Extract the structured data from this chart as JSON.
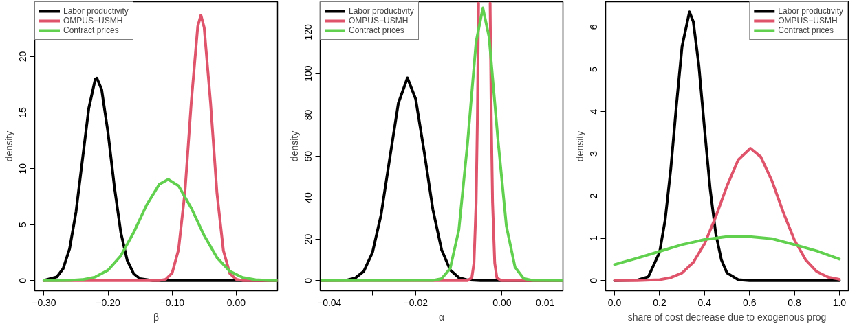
{
  "chart_data": [
    {
      "type": "line",
      "xlabel": "β",
      "ylabel": "density",
      "xlim": [
        -0.3144,
        0.0645
      ],
      "ylim": [
        -0.9,
        24.9
      ],
      "xticks": [
        {
          "value": -0.3,
          "label": "−0.30"
        },
        {
          "value": -0.25,
          "label": null
        },
        {
          "value": -0.2,
          "label": "−0.20"
        },
        {
          "value": -0.15,
          "label": null
        },
        {
          "value": -0.1,
          "label": "−0.10"
        },
        {
          "value": -0.05,
          "label": null
        },
        {
          "value": 0.0,
          "label": "0.00"
        },
        {
          "value": 0.05,
          "label": null
        }
      ],
      "yticks": [
        0,
        5,
        10,
        15,
        20
      ],
      "legend": "top left",
      "grid": false,
      "series": [
        {
          "name": "Labor productivity",
          "color": "#000000",
          "x": [
            -0.3,
            -0.28,
            -0.27,
            -0.26,
            -0.25,
            -0.24,
            -0.23,
            -0.22,
            -0.2175,
            -0.21,
            -0.2,
            -0.19,
            -0.18,
            -0.17,
            -0.16,
            -0.15,
            -0.13,
            0.0645
          ],
          "values": [
            0.02,
            0.33,
            1.08,
            2.85,
            6.13,
            10.77,
            15.4,
            17.97,
            18.08,
            17.07,
            13.2,
            8.34,
            4.28,
            1.8,
            0.62,
            0.17,
            0,
            0
          ]
        },
        {
          "name": "OMPUS−USMH",
          "color": "#df536b",
          "x": [
            -0.3,
            -0.12,
            -0.11,
            -0.1,
            -0.09,
            -0.08,
            -0.07,
            -0.06,
            -0.0551,
            -0.05,
            -0.04,
            -0.03,
            -0.02,
            -0.01,
            0.0,
            0.01,
            0.0645
          ],
          "values": [
            0,
            0.01,
            0.12,
            0.67,
            2.76,
            7.93,
            16.0,
            22.7,
            23.7,
            22.6,
            15.85,
            7.8,
            2.69,
            0.65,
            0.11,
            0.01,
            0
          ]
        },
        {
          "name": "Contract prices",
          "color": "#61d04f",
          "x": [
            -0.3,
            -0.28,
            -0.26,
            -0.24,
            -0.22,
            -0.2,
            -0.18,
            -0.16,
            -0.14,
            -0.12,
            -0.1061,
            -0.09,
            -0.07,
            -0.05,
            -0.03,
            -0.01,
            0.01,
            0.03,
            0.05,
            0.0645
          ],
          "values": [
            0,
            0,
            0.02,
            0.09,
            0.32,
            0.94,
            2.22,
            4.29,
            6.73,
            8.6,
            9.04,
            8.46,
            6.47,
            4.03,
            2.05,
            0.84,
            0.28,
            0.08,
            0.02,
            0
          ]
        }
      ]
    },
    {
      "type": "line",
      "xlabel": "α",
      "ylabel": "density",
      "xlim": [
        -0.0421,
        0.0141
      ],
      "ylim": [
        -4.9,
        134.7
      ],
      "xticks": [
        {
          "value": -0.04,
          "label": "−0.04"
        },
        {
          "value": -0.03,
          "label": null
        },
        {
          "value": -0.02,
          "label": "−0.02"
        },
        {
          "value": -0.01,
          "label": null
        },
        {
          "value": 0.0,
          "label": "0.00"
        },
        {
          "value": 0.01,
          "label": "0.01"
        }
      ],
      "yticks": [
        0,
        20,
        40,
        60,
        80,
        100,
        120
      ],
      "legend": "top left",
      "grid": false,
      "series": [
        {
          "name": "Labor productivity",
          "color": "#000000",
          "x": [
            -0.042,
            -0.036,
            -0.034,
            -0.032,
            -0.03,
            -0.028,
            -0.026,
            -0.024,
            -0.0219,
            -0.02,
            -0.018,
            -0.016,
            -0.014,
            -0.012,
            -0.01,
            -0.008,
            -0.005,
            0.014
          ],
          "values": [
            0,
            0.2,
            1.2,
            4.5,
            13.5,
            31.8,
            59,
            85.7,
            97.9,
            87.8,
            61.9,
            34.2,
            14.9,
            5.1,
            1.4,
            0.3,
            0,
            0
          ]
        },
        {
          "name": "OMPUS−USMH",
          "color": "#df536b",
          "x": [
            -0.042,
            -0.01,
            -0.008,
            -0.007,
            -0.0065,
            -0.006,
            -0.0057,
            -0.00544,
            -0.0041,
            -0.00276,
            -0.0025,
            -0.0022,
            -0.0017,
            -0.0012,
            -0.0002,
            0.014
          ],
          "values": [
            0,
            0,
            0,
            1.3,
            8.5,
            38,
            79,
            134,
            null,
            134,
            79,
            38,
            8.5,
            1.3,
            0,
            0
          ]
        },
        {
          "name": "Contract prices",
          "color": "#61d04f",
          "x": [
            -0.042,
            -0.016,
            -0.014,
            -0.012,
            -0.01,
            -0.008,
            -0.006,
            -0.00444,
            -0.003,
            -0.001,
            0.001,
            0.003,
            0.005,
            0.007,
            0.014
          ],
          "values": [
            0,
            0.1,
            0.9,
            5.9,
            24.5,
            66.1,
            115.4,
            131.7,
            117.6,
            69.2,
            26.3,
            6.5,
            1.0,
            0.1,
            0
          ]
        }
      ]
    },
    {
      "type": "line",
      "xlabel": "share of cost decrease due to exogenous prog",
      "ylabel": "density",
      "xlim": [
        -0.04,
        1.04
      ],
      "ylim": [
        -0.24,
        6.6
      ],
      "xticks": [
        {
          "value": 0.0,
          "label": "0.0"
        },
        {
          "value": 0.2,
          "label": "0.2"
        },
        {
          "value": 0.4,
          "label": "0.4"
        },
        {
          "value": 0.6,
          "label": "0.6"
        },
        {
          "value": 0.8,
          "label": "0.8"
        },
        {
          "value": 1.0,
          "label": "1.0"
        }
      ],
      "yticks": [
        0,
        1,
        2,
        3,
        4,
        5,
        6
      ],
      "legend": "top right",
      "grid": false,
      "series": [
        {
          "name": "Labor productivity",
          "color": "#000000",
          "x": [
            0.0,
            0.1,
            0.15,
            0.2,
            0.225,
            0.25,
            0.275,
            0.3,
            0.333,
            0.35,
            0.375,
            0.4,
            0.425,
            0.45,
            0.475,
            0.5,
            0.55,
            0.6,
            1.0
          ],
          "values": [
            0,
            0.01,
            0.09,
            0.67,
            1.44,
            2.65,
            4.15,
            5.54,
            6.36,
            6.13,
            5.08,
            3.59,
            2.17,
            1.11,
            0.49,
            0.18,
            0.02,
            0,
            0
          ]
        },
        {
          "name": "OMPUS−USMH",
          "color": "#df536b",
          "x": [
            0.0,
            0.1,
            0.2,
            0.25,
            0.3,
            0.35,
            0.4,
            0.45,
            0.5,
            0.55,
            0.604,
            0.65,
            0.7,
            0.75,
            0.8,
            0.85,
            0.9,
            0.95,
            1.0
          ],
          "values": [
            0,
            0,
            0.02,
            0.07,
            0.18,
            0.43,
            0.87,
            1.51,
            2.24,
            2.86,
            3.13,
            2.93,
            2.36,
            1.62,
            0.96,
            0.49,
            0.21,
            0.08,
            0.03
          ]
        },
        {
          "name": "Contract prices",
          "color": "#61d04f",
          "x": [
            0.0,
            0.1,
            0.2,
            0.3,
            0.4,
            0.5,
            0.55,
            0.6,
            0.7,
            0.8,
            0.9,
            1.0
          ],
          "values": [
            0.38,
            0.53,
            0.69,
            0.85,
            0.97,
            1.04,
            1.05,
            1.04,
            0.99,
            0.85,
            0.7,
            0.51
          ]
        }
      ]
    }
  ]
}
